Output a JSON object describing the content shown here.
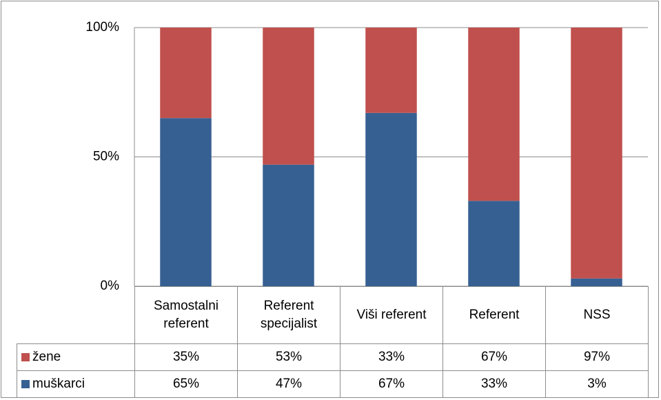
{
  "chart_data": {
    "type": "stacked_bar_100",
    "categories": [
      "Samostalni referent",
      "Referent specijalist",
      "Viši referent",
      "Referent",
      "NSS"
    ],
    "series": [
      {
        "name": "žene",
        "color": "#c0504d",
        "values": [
          35,
          53,
          33,
          67,
          97
        ],
        "value_labels": [
          "35%",
          "53%",
          "33%",
          "67%",
          "97%"
        ]
      },
      {
        "name": "muškarci",
        "color": "#366092",
        "values": [
          65,
          47,
          67,
          33,
          3
        ],
        "value_labels": [
          "65%",
          "47%",
          "67%",
          "33%",
          "3%"
        ]
      }
    ],
    "ylim": [
      0,
      100
    ],
    "yticks": [
      {
        "value": 0,
        "label": "0%"
      },
      {
        "value": 50,
        "label": "50%"
      },
      {
        "value": 100,
        "label": "100%"
      }
    ],
    "grid": true,
    "legend": "data-table"
  }
}
